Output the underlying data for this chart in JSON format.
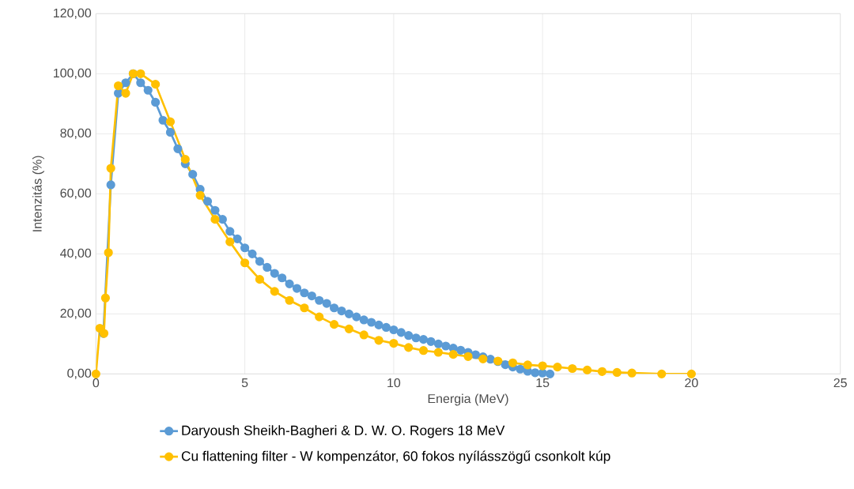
{
  "chart_data": {
    "type": "line",
    "xlabel": "Energia (MeV)",
    "ylabel": "Intenzitás (%)",
    "xlim": [
      0,
      25
    ],
    "xticks": [
      0,
      5,
      10,
      15,
      20,
      25
    ],
    "ylim": [
      0,
      120
    ],
    "yticks": [
      {
        "value": 0,
        "label": "0,00"
      },
      {
        "value": 20,
        "label": "20,00"
      },
      {
        "value": 40,
        "label": "40,00"
      },
      {
        "value": 60,
        "label": "60,00"
      },
      {
        "value": 80,
        "label": "80,00"
      },
      {
        "value": 100,
        "label": "100,00"
      },
      {
        "value": 120,
        "label": "120,00"
      }
    ],
    "grid": true,
    "legend": "bottom",
    "marker": "circle",
    "line_style": "solid",
    "series": [
      {
        "name": "Daryoush Sheikh-Bagheri & D. W. O. Rogers 18 MeV",
        "color": "#5b9bd5",
        "x": [
          0.25,
          0.5,
          0.75,
          1.0,
          1.25,
          1.5,
          1.75,
          2.0,
          2.25,
          2.5,
          2.75,
          3.0,
          3.25,
          3.5,
          3.75,
          4.0,
          4.25,
          4.5,
          4.75,
          5.0,
          5.25,
          5.5,
          5.75,
          6.0,
          6.25,
          6.5,
          6.75,
          7.0,
          7.25,
          7.5,
          7.75,
          8.0,
          8.25,
          8.5,
          8.75,
          9.0,
          9.25,
          9.5,
          9.75,
          10.0,
          10.25,
          10.5,
          10.75,
          11.0,
          11.25,
          11.5,
          11.75,
          12.0,
          12.25,
          12.5,
          12.75,
          13.0,
          13.25,
          13.5,
          13.75,
          14.0,
          14.25,
          14.5,
          14.75,
          15.0,
          15.25
        ],
        "values": [
          13.5,
          63,
          93.5,
          97,
          100,
          97,
          94.5,
          90.5,
          84.5,
          80.5,
          75,
          70,
          66.5,
          61.5,
          57.5,
          54.5,
          51.5,
          47.5,
          45,
          42,
          40,
          37.5,
          35.5,
          33.5,
          32,
          30,
          28.5,
          27,
          26,
          24.5,
          23.5,
          22,
          21,
          20,
          19,
          18,
          17.2,
          16.3,
          15.5,
          14.7,
          13.8,
          12.8,
          12,
          11.5,
          10.8,
          10,
          9.3,
          8.6,
          7.9,
          7.2,
          6.4,
          5.7,
          4.9,
          4.1,
          3.1,
          2.3,
          1.6,
          0.9,
          0.4,
          0.3,
          0
        ]
      },
      {
        "name": "Cu flattening filter - W kompenzátor, 60 fokos nyílásszögű csonkolt kúp",
        "color": "#ffc000",
        "x": [
          0,
          0.13,
          0.27,
          0.32,
          0.42,
          0.5,
          0.75,
          1.0,
          1.25,
          1.5,
          2.0,
          2.5,
          3.0,
          3.5,
          4.0,
          4.5,
          5.0,
          5.5,
          6.0,
          6.5,
          7.0,
          7.5,
          8.0,
          8.5,
          9.0,
          9.5,
          10.0,
          10.5,
          11.0,
          11.5,
          12.0,
          12.5,
          13.0,
          13.5,
          14.0,
          14.5,
          15.0,
          15.5,
          16.0,
          16.5,
          17.0,
          17.5,
          18.0,
          19.0,
          20.0
        ],
        "values": [
          0,
          15.2,
          13.5,
          25.3,
          40.4,
          68.5,
          96,
          93.5,
          100,
          100,
          96.5,
          84,
          71.5,
          59.5,
          51.5,
          44,
          37,
          31.5,
          27.5,
          24.5,
          22,
          19,
          16.5,
          15,
          13,
          11.2,
          10.2,
          8.8,
          7.8,
          7.2,
          6.5,
          5.8,
          5,
          4.3,
          3.7,
          3,
          2.7,
          2.3,
          1.8,
          1.3,
          0.8,
          0.5,
          0.3,
          0,
          0
        ]
      }
    ]
  }
}
